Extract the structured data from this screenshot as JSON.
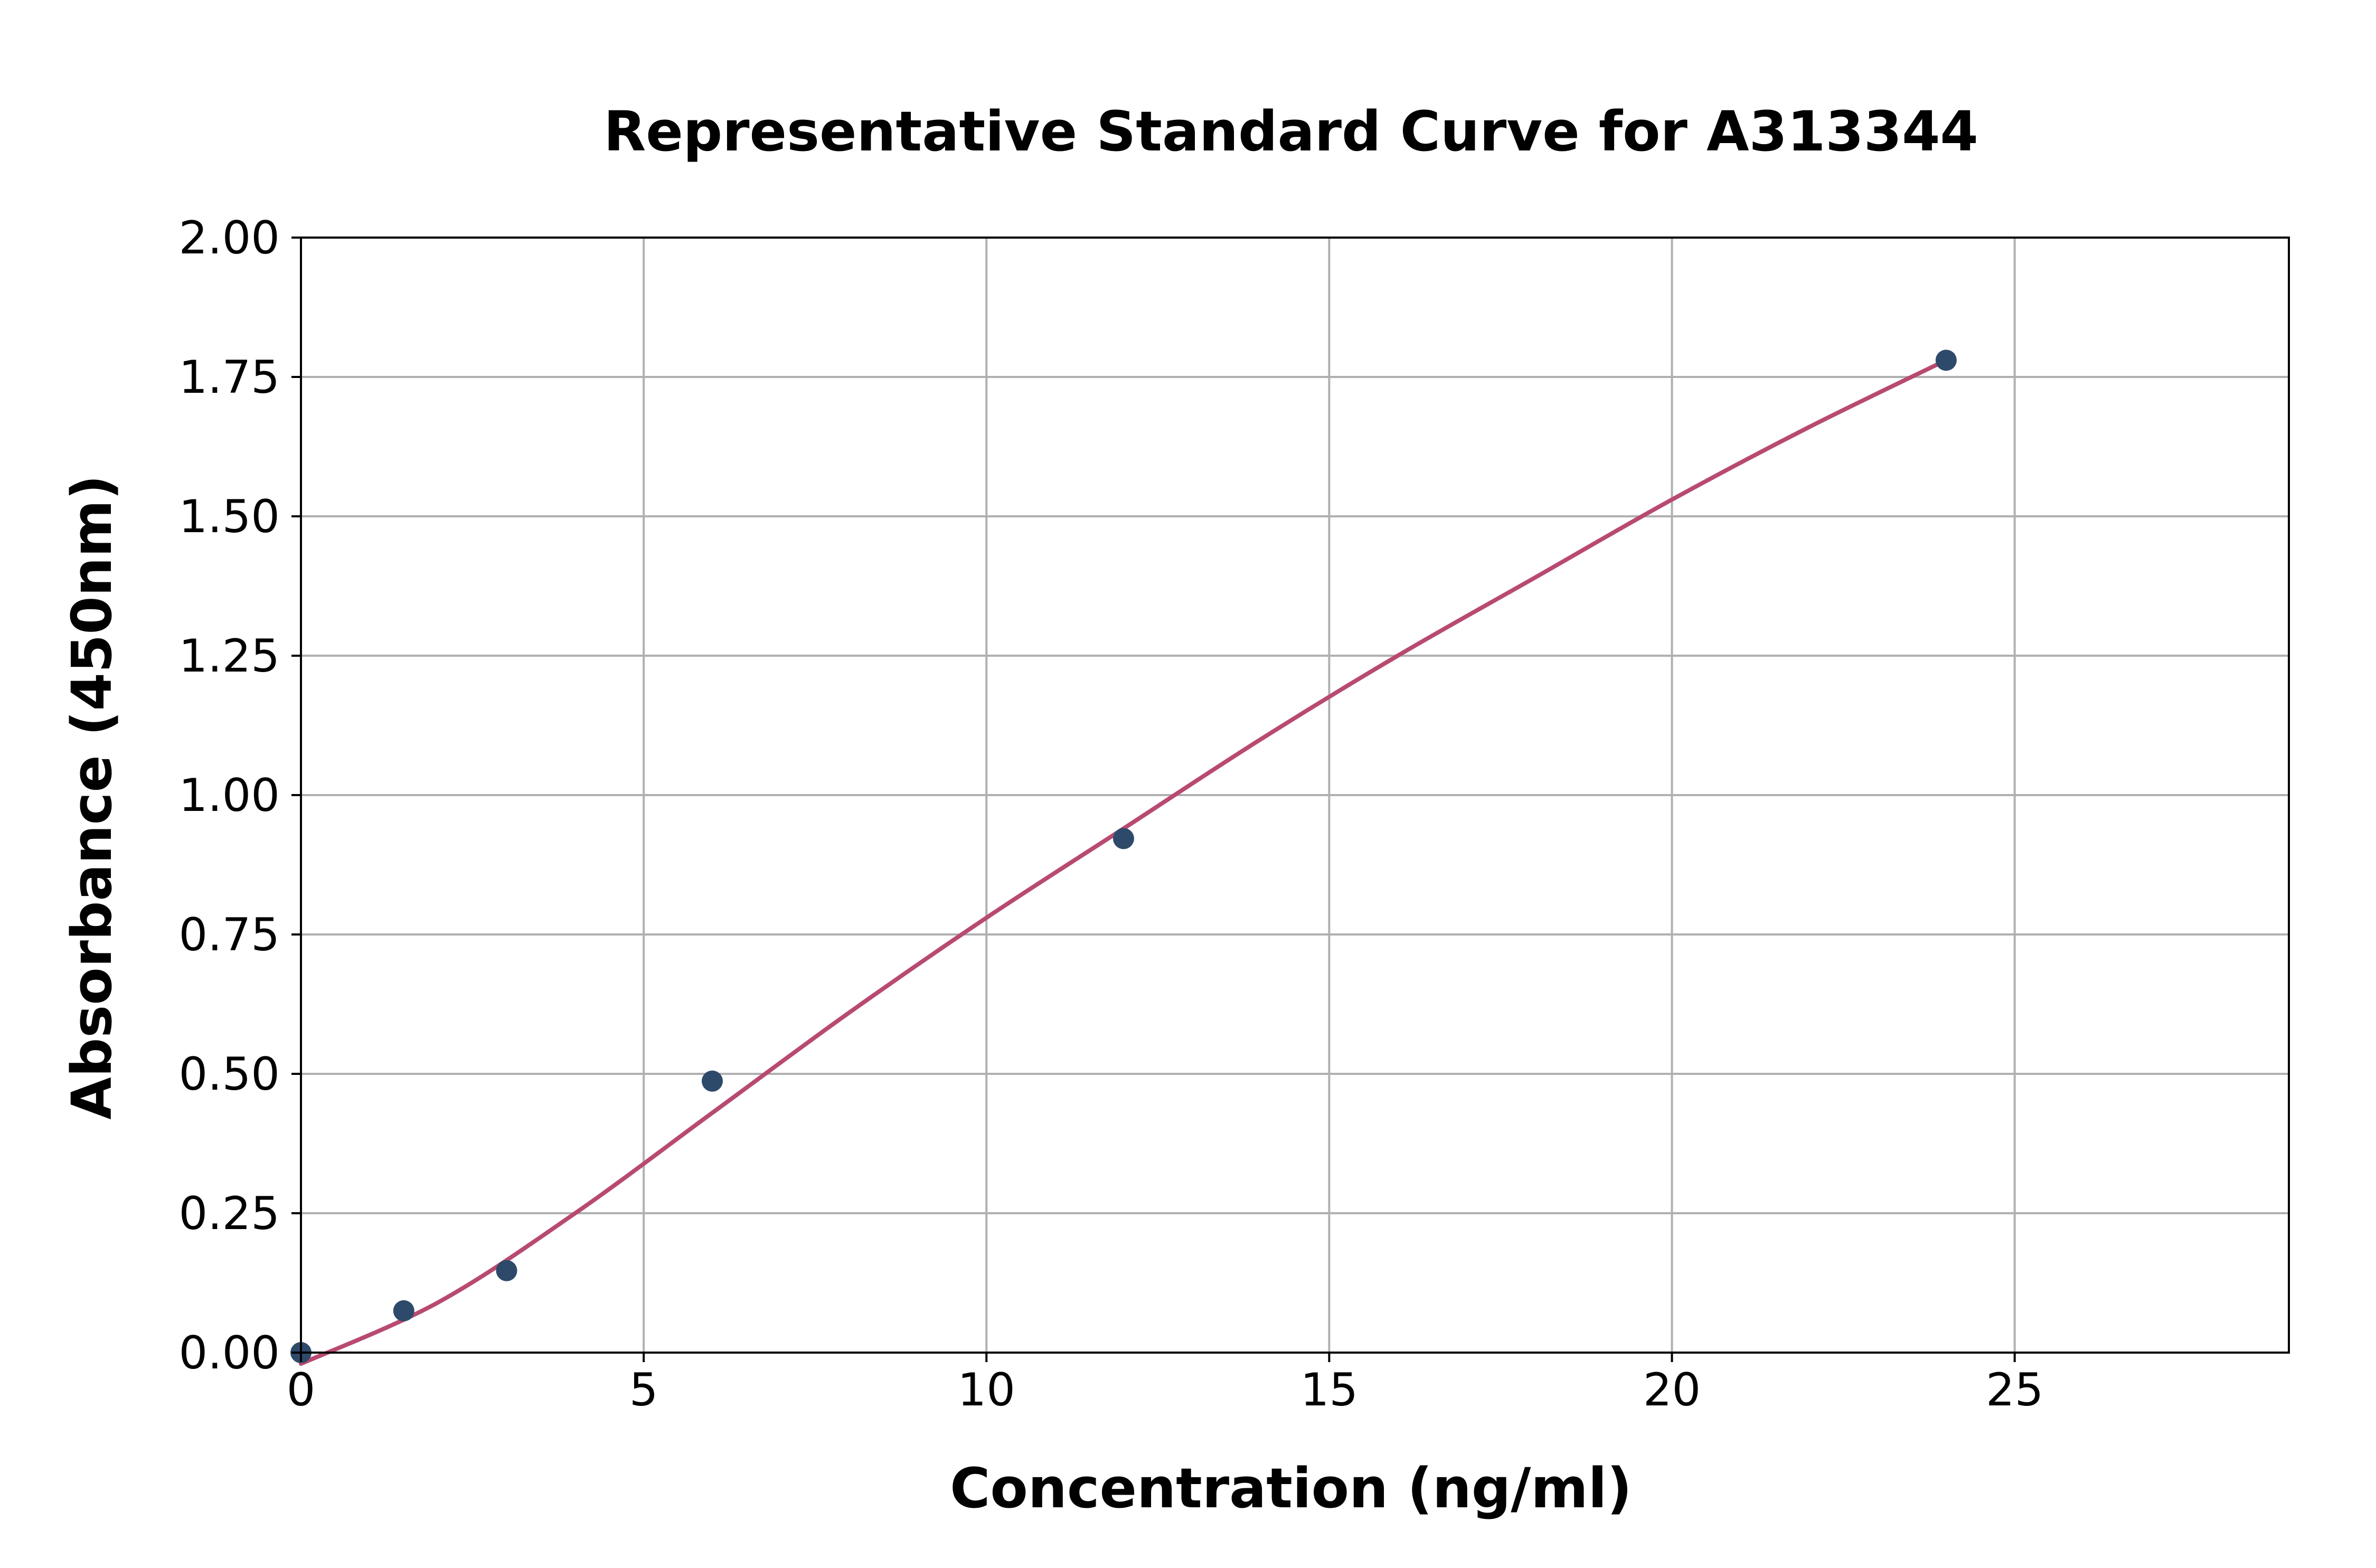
{
  "chart_data": {
    "type": "scatter",
    "title": "Representative Standard Curve for A313344",
    "xlabel": "Concentration (ng/ml)",
    "ylabel": "Absorbance (450nm)",
    "xlim": [
      0,
      29
    ],
    "ylim": [
      0,
      2.0
    ],
    "x_ticks": [
      0,
      5,
      10,
      15,
      20,
      25
    ],
    "x_tick_labels": [
      "0",
      "5",
      "10",
      "15",
      "20",
      "25"
    ],
    "y_ticks": [
      0,
      0.25,
      0.5,
      0.75,
      1.0,
      1.25,
      1.5,
      1.75,
      2.0
    ],
    "y_tick_labels": [
      "0.00",
      "0.25",
      "0.50",
      "0.75",
      "1.00",
      "1.25",
      "1.50",
      "1.75",
      "2.00"
    ],
    "grid": true,
    "series": [
      {
        "kind": "points",
        "color": "#2e4a6b",
        "x": [
          0,
          1.5,
          3,
          6,
          12,
          24
        ],
        "y": [
          0.0,
          0.075,
          0.147,
          0.487,
          0.922,
          1.78
        ]
      },
      {
        "kind": "fitted-curve",
        "color": "#b84a72",
        "x": [
          0,
          2,
          4,
          6,
          8,
          10,
          12,
          14,
          16,
          18,
          20,
          22,
          24
        ],
        "y": [
          -0.02,
          0.09,
          0.25,
          0.43,
          0.61,
          0.78,
          0.94,
          1.1,
          1.25,
          1.39,
          1.53,
          1.66,
          1.78
        ]
      }
    ]
  }
}
